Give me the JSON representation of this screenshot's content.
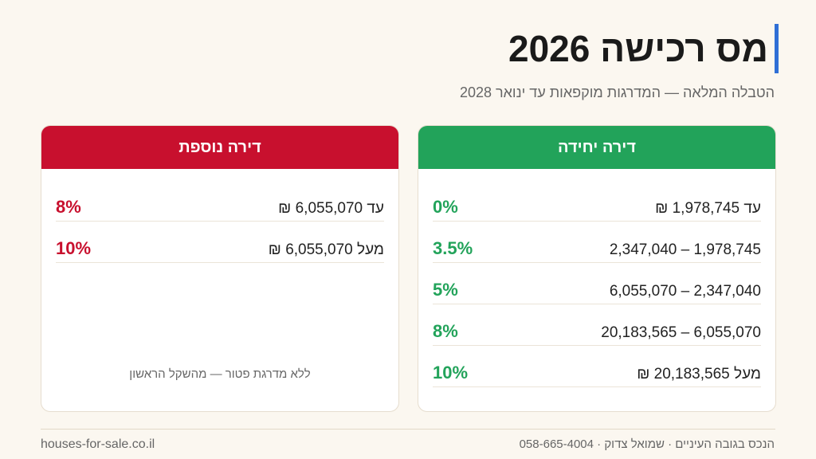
{
  "header": {
    "title": "מס רכישה 2026",
    "subtitle": "הטבלה המלאה — המדרגות מוקפאות עד ינואר 2028"
  },
  "colors": {
    "accent_bar": "#2f6fd6",
    "single_green": "#22a35a",
    "additional_red": "#c8102e",
    "background": "#fbf7f0"
  },
  "single_home": {
    "title": "דירה יחידה",
    "rows": [
      {
        "range": "עד 1,978,745 ₪",
        "rate": "0%"
      },
      {
        "range": "1,978,745 – 2,347,040",
        "rate": "3.5%"
      },
      {
        "range": "2,347,040 – 6,055,070",
        "rate": "5%"
      },
      {
        "range": "6,055,070 – 20,183,565",
        "rate": "8%"
      },
      {
        "range": "מעל 20,183,565 ₪",
        "rate": "10%"
      }
    ]
  },
  "additional_home": {
    "title": "דירה נוספת",
    "rows": [
      {
        "range": "עד 6,055,070 ₪",
        "rate": "8%"
      },
      {
        "range": "מעל 6,055,070 ₪",
        "rate": "10%"
      }
    ],
    "note": "ללא מדרגת פטור — מהשקל הראשון"
  },
  "footer": {
    "contact": "הנכס בגובה העיניים · שמואל צדוק · 058-665-4004",
    "website": "houses-for-sale.co.il"
  }
}
